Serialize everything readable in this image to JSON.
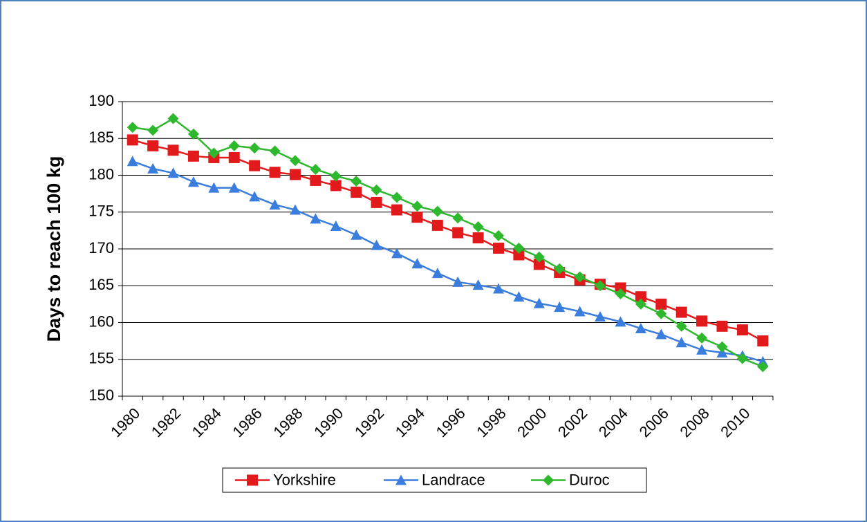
{
  "chart_data": {
    "type": "line",
    "y_label": "Days to reach 100 kg",
    "categories": [
      "1980",
      null,
      "1982",
      null,
      "1984",
      null,
      "1986",
      null,
      "1988",
      null,
      "1990",
      null,
      "1992",
      null,
      "1994",
      null,
      "1996",
      null,
      "1998",
      null,
      "2000",
      null,
      "2002",
      null,
      "2004",
      null,
      "2006",
      null,
      "2008",
      null,
      "2010",
      null
    ],
    "series": [
      {
        "name": "Yorkshire",
        "color": "#e31a1c",
        "marker": "square",
        "values": [
          184.8,
          184.0,
          183.4,
          182.6,
          182.4,
          182.4,
          181.3,
          180.4,
          180.1,
          179.3,
          178.6,
          177.7,
          176.3,
          175.3,
          174.3,
          173.2,
          172.2,
          171.5,
          170.1,
          169.2,
          167.9,
          166.8,
          165.8,
          165.2,
          164.7,
          163.5,
          162.5,
          161.4,
          160.2,
          159.5,
          159.0,
          157.5
        ]
      },
      {
        "name": "Landrace",
        "color": "#3b7ddd",
        "marker": "triangle",
        "values": [
          181.9,
          180.9,
          180.3,
          179.1,
          178.3,
          178.3,
          177.1,
          176.0,
          175.3,
          174.1,
          173.1,
          171.9,
          170.5,
          169.4,
          168.0,
          166.7,
          165.5,
          165.1,
          164.6,
          163.5,
          162.6,
          162.1,
          161.5,
          160.8,
          160.1,
          159.2,
          158.4,
          157.3,
          156.3,
          155.9,
          155.5,
          154.7
        ]
      },
      {
        "name": "Duroc",
        "color": "#2db82d",
        "marker": "diamond",
        "values": [
          186.5,
          186.1,
          187.7,
          185.6,
          183.0,
          184.0,
          183.7,
          183.3,
          182.0,
          180.8,
          179.9,
          179.2,
          178.0,
          177.0,
          175.8,
          175.1,
          174.2,
          173.0,
          171.8,
          170.1,
          168.9,
          167.3,
          166.2,
          165.0,
          163.9,
          162.5,
          161.2,
          159.5,
          157.9,
          156.7,
          155.1,
          154.0
        ]
      }
    ],
    "ylim": [
      150,
      190
    ],
    "yticks": [
      150,
      155,
      160,
      165,
      170,
      175,
      180,
      185,
      190
    ],
    "grid": true,
    "legend": "bottom"
  }
}
